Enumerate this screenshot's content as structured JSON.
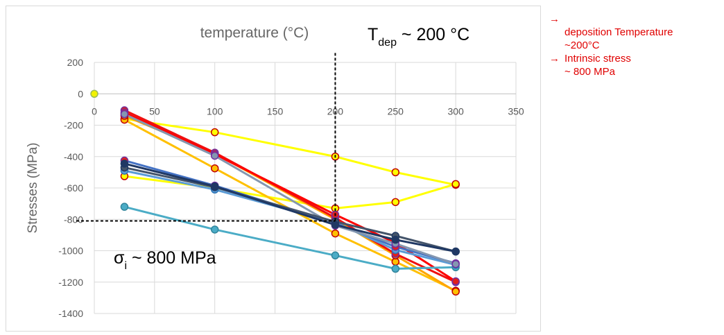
{
  "chart_data": {
    "type": "line",
    "title": "temperature (°C)",
    "ylabel": "Stresses (MPa)",
    "xlim": [
      0,
      350
    ],
    "ylim": [
      -1400,
      200
    ],
    "x_ticks": [
      0,
      50,
      100,
      150,
      200,
      250,
      300,
      350
    ],
    "y_ticks": [
      200,
      0,
      -200,
      -400,
      -600,
      -800,
      -1000,
      -1200,
      -1400
    ],
    "grid": true,
    "legend": "none",
    "origin_point": {
      "x": 0,
      "y": 0,
      "color": "#f2f200"
    },
    "series": [
      {
        "color": "#ffff00",
        "marker": "#ffff00",
        "marker_edge": "#c00000",
        "x": [
          25,
          100,
          200,
          250,
          300
        ],
        "y": [
          -160,
          -245,
          -400,
          -500,
          -580
        ]
      },
      {
        "color": "#ffff00",
        "marker": "#ffff00",
        "marker_edge": "#c00000",
        "x": [
          25,
          100,
          200,
          250,
          300
        ],
        "y": [
          -525,
          -600,
          -730,
          -690,
          -575
        ]
      },
      {
        "color": "#ffc000",
        "marker": "#ffc000",
        "marker_edge": "#c00000",
        "x": [
          25,
          100,
          200,
          250,
          300
        ],
        "y": [
          -165,
          -475,
          -890,
          -1070,
          -1255
        ]
      },
      {
        "color": "#ffa500",
        "marker": "#ffc000",
        "marker_edge": "#c00000",
        "x": [
          25,
          100,
          200,
          250,
          300
        ],
        "y": [
          -140,
          -380,
          -800,
          -1030,
          -1260
        ]
      },
      {
        "color": "#ee1111",
        "marker": "#e0201c",
        "marker_edge": "#7030a0",
        "x": [
          25,
          100,
          200,
          250,
          300
        ],
        "y": [
          -105,
          -375,
          -790,
          -1020,
          -1200
        ]
      },
      {
        "color": "#ff0000",
        "marker": "#e0201c",
        "marker_edge": "#7030a0",
        "x": [
          25,
          100,
          200,
          250,
          300
        ],
        "y": [
          -120,
          -385,
          -770,
          -950,
          -1195
        ]
      },
      {
        "color": "#4bacc6",
        "marker": "#4bacc6",
        "marker_edge": "#31859c",
        "x": [
          25,
          100,
          200,
          250,
          300
        ],
        "y": [
          -720,
          -865,
          -1030,
          -1115,
          -1105
        ]
      },
      {
        "color": "#5b9bd5",
        "marker": "#5b9bd5",
        "marker_edge": "#2e75b6",
        "x": [
          25,
          100,
          200,
          250,
          300
        ],
        "y": [
          -490,
          -610,
          -820,
          -995,
          -1090
        ]
      },
      {
        "color": "#4472c4",
        "marker": "#e0201c",
        "marker_edge": "#7030a0",
        "x": [
          25,
          100,
          200,
          250,
          300
        ],
        "y": [
          -425,
          -585,
          -825,
          -975,
          -1080
        ]
      },
      {
        "color": "#8497b0",
        "marker": "#8497b0",
        "marker_edge": "#7030a0",
        "x": [
          25,
          100,
          200,
          250,
          300
        ],
        "y": [
          -130,
          -395,
          -840,
          -955,
          -1085
        ]
      },
      {
        "color": "#44546a",
        "marker": "#44546a",
        "marker_edge": "#1f3864",
        "x": [
          25,
          100,
          200,
          250,
          300
        ],
        "y": [
          -470,
          -595,
          -815,
          -905,
          -1005
        ]
      },
      {
        "color": "#1f3864",
        "marker": "#203864",
        "marker_edge": "#1f3864",
        "x": [
          25,
          100,
          200,
          250,
          300
        ],
        "y": [
          -445,
          -590,
          -835,
          -930,
          -1005
        ]
      }
    ],
    "reference_lines": [
      {
        "orientation": "vertical",
        "x": 200,
        "y_from": -810,
        "y_to": 260,
        "color": "#000000",
        "style": "dashed"
      },
      {
        "orientation": "horizontal",
        "y": -810,
        "x_from": -15,
        "x_to": 200,
        "color": "#000000",
        "style": "dashed"
      }
    ]
  },
  "annotations": {
    "tdep": {
      "prefix": "T",
      "sub": "dep",
      "suffix": " ~ 200 °C"
    },
    "sigma": {
      "prefix": "σ",
      "sub": "i",
      "suffix": " ~ 800 MPa"
    }
  },
  "notes": [
    {
      "arrow": "→",
      "lines": [
        "",
        "deposition Temperature",
        "~200°C"
      ]
    },
    {
      "arrow": "→",
      "lines": [
        "Intrinsic stress",
        "~ 800 MPa"
      ]
    }
  ]
}
